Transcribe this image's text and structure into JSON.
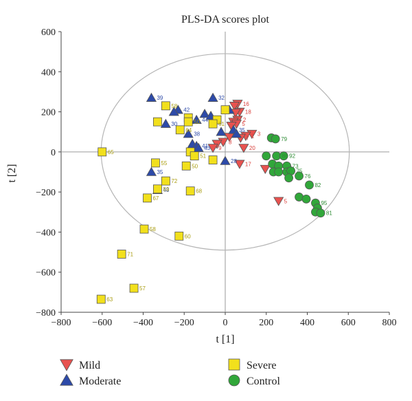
{
  "chart_data": {
    "type": "scatter",
    "title": "PLS-DA scores plot",
    "xlabel": "t [1]",
    "ylabel": "t [2]",
    "xlim": [
      -800,
      800
    ],
    "ylim": [
      -800,
      600
    ],
    "xticks": [
      -800,
      -600,
      -400,
      -200,
      0,
      200,
      400,
      600,
      800
    ],
    "yticks": [
      -800,
      -600,
      -400,
      -200,
      0,
      200,
      400,
      600
    ],
    "grid": false,
    "ellipse": {
      "cx": 0,
      "cy": 0,
      "rx": 605,
      "ry": 490
    },
    "legend_position": "bottom",
    "series": [
      {
        "name": "Mild",
        "marker": "triangle-down",
        "color": "#e8524f",
        "label_color": "#d9403b",
        "points": [
          {
            "x": 60,
            "y": 240,
            "label": "16"
          },
          {
            "x": 45,
            "y": 230,
            "label": ""
          },
          {
            "x": 70,
            "y": 200,
            "label": "18"
          },
          {
            "x": 50,
            "y": 195,
            "label": ""
          },
          {
            "x": 60,
            "y": 160,
            "label": "2"
          },
          {
            "x": 40,
            "y": 150,
            "label": ""
          },
          {
            "x": 55,
            "y": 140,
            "label": "5"
          },
          {
            "x": 30,
            "y": 130,
            "label": ""
          },
          {
            "x": 130,
            "y": 90,
            "label": "3"
          },
          {
            "x": 100,
            "y": 80,
            "label": "1"
          },
          {
            "x": 75,
            "y": 70,
            "label": "7"
          },
          {
            "x": 20,
            "y": 75,
            "label": ""
          },
          {
            "x": -10,
            "y": 50,
            "label": "8"
          },
          {
            "x": -40,
            "y": 40,
            "label": ""
          },
          {
            "x": -60,
            "y": 20,
            "label": "9"
          },
          {
            "x": 90,
            "y": 20,
            "label": "20"
          },
          {
            "x": 70,
            "y": -60,
            "label": "17"
          },
          {
            "x": 195,
            "y": -85,
            "label": ""
          },
          {
            "x": 260,
            "y": -245,
            "label": "5"
          }
        ]
      },
      {
        "name": "Moderate",
        "marker": "triangle-up",
        "color": "#2d4aa8",
        "label_color": "#2d4aa8",
        "points": [
          {
            "x": -360,
            "y": 270,
            "label": "39"
          },
          {
            "x": -60,
            "y": 270,
            "label": "32"
          },
          {
            "x": -230,
            "y": 210,
            "label": "42"
          },
          {
            "x": -250,
            "y": 200,
            "label": ""
          },
          {
            "x": -100,
            "y": 190,
            "label": ""
          },
          {
            "x": -70,
            "y": 180,
            "label": ""
          },
          {
            "x": -140,
            "y": 160,
            "label": "44"
          },
          {
            "x": -290,
            "y": 140,
            "label": "30"
          },
          {
            "x": 20,
            "y": 210,
            "label": ""
          },
          {
            "x": 40,
            "y": 110,
            "label": "35"
          },
          {
            "x": 55,
            "y": 90,
            "label": ""
          },
          {
            "x": -20,
            "y": 100,
            "label": ""
          },
          {
            "x": -180,
            "y": 90,
            "label": "38"
          },
          {
            "x": -160,
            "y": 40,
            "label": ""
          },
          {
            "x": -140,
            "y": 30,
            "label": "41"
          },
          {
            "x": -130,
            "y": 20,
            "label": "43"
          },
          {
            "x": 0,
            "y": -45,
            "label": "28"
          },
          {
            "x": -360,
            "y": -100,
            "label": "35"
          },
          {
            "x": -330,
            "y": -190,
            "label": "48"
          }
        ]
      },
      {
        "name": "Severe",
        "marker": "square",
        "color": "#f2e01c",
        "label_color": "#a99d10",
        "points": [
          {
            "x": -290,
            "y": 230,
            "label": "58"
          },
          {
            "x": -330,
            "y": 150,
            "label": ""
          },
          {
            "x": -180,
            "y": 170,
            "label": ""
          },
          {
            "x": -180,
            "y": 150,
            "label": "50"
          },
          {
            "x": -220,
            "y": 110,
            "label": "64"
          },
          {
            "x": -40,
            "y": 160,
            "label": ""
          },
          {
            "x": -60,
            "y": 140,
            "label": "61"
          },
          {
            "x": 0,
            "y": 210,
            "label": ""
          },
          {
            "x": -600,
            "y": 0,
            "label": "65"
          },
          {
            "x": -170,
            "y": 0,
            "label": ""
          },
          {
            "x": -150,
            "y": -20,
            "label": "51"
          },
          {
            "x": -340,
            "y": -55,
            "label": "55"
          },
          {
            "x": -190,
            "y": -70,
            "label": "50"
          },
          {
            "x": -60,
            "y": -40,
            "label": ""
          },
          {
            "x": -290,
            "y": -145,
            "label": "72"
          },
          {
            "x": -330,
            "y": -185,
            "label": "59"
          },
          {
            "x": -170,
            "y": -195,
            "label": "68"
          },
          {
            "x": -380,
            "y": -230,
            "label": "67"
          },
          {
            "x": -395,
            "y": -385,
            "label": "58"
          },
          {
            "x": -225,
            "y": -420,
            "label": "60"
          },
          {
            "x": -505,
            "y": -510,
            "label": "71"
          },
          {
            "x": -445,
            "y": -680,
            "label": "57"
          },
          {
            "x": -605,
            "y": -735,
            "label": "63"
          }
        ]
      },
      {
        "name": "Control",
        "marker": "circle",
        "color": "#31a73a",
        "label_color": "#2e8b34",
        "points": [
          {
            "x": 225,
            "y": 70,
            "label": ""
          },
          {
            "x": 245,
            "y": 65,
            "label": "79"
          },
          {
            "x": 200,
            "y": -20,
            "label": ""
          },
          {
            "x": 250,
            "y": -20,
            "label": "86"
          },
          {
            "x": 285,
            "y": -20,
            "label": "92"
          },
          {
            "x": 230,
            "y": -60,
            "label": ""
          },
          {
            "x": 260,
            "y": -70,
            "label": ""
          },
          {
            "x": 300,
            "y": -70,
            "label": "73"
          },
          {
            "x": 235,
            "y": -100,
            "label": ""
          },
          {
            "x": 260,
            "y": -100,
            "label": "74"
          },
          {
            "x": 300,
            "y": -100,
            "label": ""
          },
          {
            "x": 320,
            "y": -95,
            "label": "75"
          },
          {
            "x": 310,
            "y": -130,
            "label": ""
          },
          {
            "x": 360,
            "y": -120,
            "label": "76"
          },
          {
            "x": 410,
            "y": -165,
            "label": "82"
          },
          {
            "x": 360,
            "y": -225,
            "label": ""
          },
          {
            "x": 395,
            "y": -235,
            "label": ""
          },
          {
            "x": 440,
            "y": -255,
            "label": "95"
          },
          {
            "x": 450,
            "y": -280,
            "label": ""
          },
          {
            "x": 440,
            "y": -300,
            "label": ""
          },
          {
            "x": 465,
            "y": -305,
            "label": "81"
          }
        ]
      }
    ]
  }
}
